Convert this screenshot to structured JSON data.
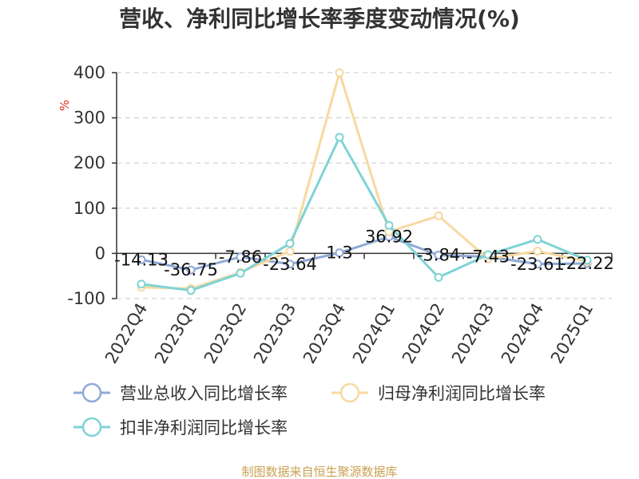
{
  "chart_data": {
    "type": "line",
    "title": "营收、净利同比增长率季度变动情况(%)",
    "ylabel": "%",
    "xlabel": "",
    "ylim": [
      -100,
      400
    ],
    "yticks": [
      400,
      300,
      200,
      100,
      0,
      -100
    ],
    "categories": [
      "2022Q4",
      "2023Q1",
      "2023Q2",
      "2023Q3",
      "2023Q4",
      "2024Q1",
      "2024Q2",
      "2024Q3",
      "2024Q4",
      "2025Q1"
    ],
    "series": [
      {
        "name": "营业总收入同比增长率",
        "color": "#8fa9d6",
        "values": [
          -14.13,
          -36.75,
          -7.86,
          -23.64,
          1.3,
          36.92,
          -3.84,
          -7.43,
          -23.61,
          -22.22
        ],
        "labels": [
          "-14.13",
          "-36.75",
          "-7.86",
          "-23.64",
          "1.3",
          "36.92",
          "-3.84",
          "-7.43",
          "-23.61",
          "-22.22"
        ]
      },
      {
        "name": "归母净利润同比增长率",
        "color": "#f7d9a0",
        "values": [
          -75,
          -78,
          -42,
          5,
          400,
          48,
          83,
          -12,
          5,
          -18
        ]
      },
      {
        "name": "扣非净利润同比增长率",
        "color": "#7fd3d5",
        "values": [
          -68,
          -82,
          -44,
          22,
          257,
          62,
          -53,
          -3,
          31,
          -15
        ]
      }
    ],
    "grid": true,
    "legend_position": "bottom"
  },
  "source": "制图数据来自恒生聚源数据库"
}
